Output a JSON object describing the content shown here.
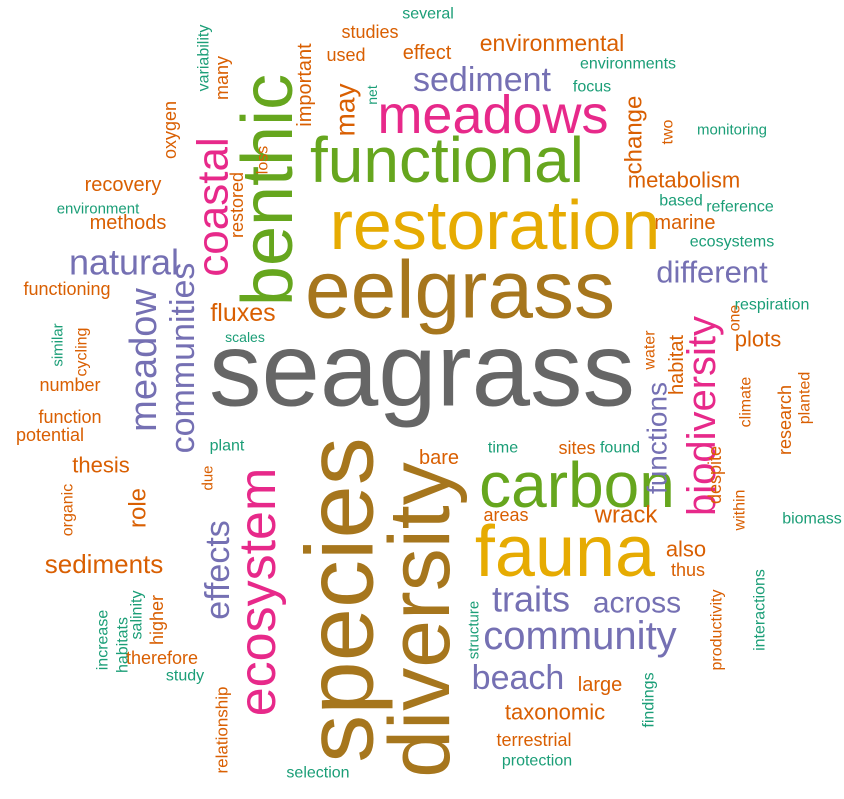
{
  "words": [
    {
      "text": "seagrass",
      "color": "#666666"
    },
    {
      "text": "eelgrass",
      "color": "#a6761d"
    },
    {
      "text": "restoration",
      "color": "#e6ab02"
    },
    {
      "text": "functional",
      "color": "#66a61e"
    },
    {
      "text": "meadows",
      "color": "#e7298a"
    },
    {
      "text": "sediment",
      "color": "#7570b3"
    },
    {
      "text": "environmental",
      "color": "#d95f02"
    },
    {
      "text": "effect",
      "color": "#d95f02"
    },
    {
      "text": "studies",
      "color": "#d95f02"
    },
    {
      "text": "several",
      "color": "#1b9e77"
    },
    {
      "text": "used",
      "color": "#d95f02"
    },
    {
      "text": "environments",
      "color": "#1b9e77"
    },
    {
      "text": "focus",
      "color": "#1b9e77"
    },
    {
      "text": "monitoring",
      "color": "#1b9e77"
    },
    {
      "text": "recovery",
      "color": "#d95f02"
    },
    {
      "text": "environment",
      "color": "#1b9e77"
    },
    {
      "text": "methods",
      "color": "#d95f02"
    },
    {
      "text": "metabolism",
      "color": "#d95f02"
    },
    {
      "text": "based",
      "color": "#1b9e77"
    },
    {
      "text": "reference",
      "color": "#1b9e77"
    },
    {
      "text": "marine",
      "color": "#d95f02"
    },
    {
      "text": "ecosystems",
      "color": "#1b9e77"
    },
    {
      "text": "natural",
      "color": "#7570b3"
    },
    {
      "text": "different",
      "color": "#7570b3"
    },
    {
      "text": "functioning",
      "color": "#d95f02"
    },
    {
      "text": "respiration",
      "color": "#1b9e77"
    },
    {
      "text": "fluxes",
      "color": "#d95f02"
    },
    {
      "text": "scales",
      "color": "#1b9e77"
    },
    {
      "text": "plots",
      "color": "#d95f02"
    },
    {
      "text": "number",
      "color": "#d95f02"
    },
    {
      "text": "function",
      "color": "#d95f02"
    },
    {
      "text": "potential",
      "color": "#d95f02"
    },
    {
      "text": "plant",
      "color": "#1b9e77"
    },
    {
      "text": "time",
      "color": "#1b9e77"
    },
    {
      "text": "sites",
      "color": "#d95f02"
    },
    {
      "text": "found",
      "color": "#1b9e77"
    },
    {
      "text": "thesis",
      "color": "#d95f02"
    },
    {
      "text": "bare",
      "color": "#d95f02"
    },
    {
      "text": "carbon",
      "color": "#66a61e"
    },
    {
      "text": "areas",
      "color": "#d95f02"
    },
    {
      "text": "wrack",
      "color": "#d95f02"
    },
    {
      "text": "biomass",
      "color": "#1b9e77"
    },
    {
      "text": "sediments",
      "color": "#d95f02"
    },
    {
      "text": "fauna",
      "color": "#e6ab02"
    },
    {
      "text": "also",
      "color": "#d95f02"
    },
    {
      "text": "thus",
      "color": "#d95f02"
    },
    {
      "text": "traits",
      "color": "#7570b3"
    },
    {
      "text": "across",
      "color": "#7570b3"
    },
    {
      "text": "community",
      "color": "#7570b3"
    },
    {
      "text": "therefore",
      "color": "#d95f02"
    },
    {
      "text": "study",
      "color": "#1b9e77"
    },
    {
      "text": "beach",
      "color": "#7570b3"
    },
    {
      "text": "large",
      "color": "#d95f02"
    },
    {
      "text": "taxonomic",
      "color": "#d95f02"
    },
    {
      "text": "terrestrial",
      "color": "#d95f02"
    },
    {
      "text": "protection",
      "color": "#1b9e77"
    },
    {
      "text": "selection",
      "color": "#1b9e77"
    },
    {
      "text": "benthic",
      "color": "#66a61e"
    },
    {
      "text": "coastal",
      "color": "#e7298a"
    },
    {
      "text": "communities",
      "color": "#7570b3"
    },
    {
      "text": "meadow",
      "color": "#7570b3"
    },
    {
      "text": "species",
      "color": "#a6761d"
    },
    {
      "text": "diversity",
      "color": "#a6761d"
    },
    {
      "text": "ecosystem",
      "color": "#e7298a"
    },
    {
      "text": "effects",
      "color": "#7570b3"
    },
    {
      "text": "biodiversity",
      "color": "#e7298a"
    },
    {
      "text": "functions",
      "color": "#7570b3"
    },
    {
      "text": "role",
      "color": "#d95f02"
    },
    {
      "text": "important",
      "color": "#d95f02"
    },
    {
      "text": "may",
      "color": "#d95f02"
    },
    {
      "text": "many",
      "color": "#d95f02"
    },
    {
      "text": "variability",
      "color": "#1b9e77"
    },
    {
      "text": "oxygen",
      "color": "#d95f02"
    },
    {
      "text": "restored",
      "color": "#d95f02"
    },
    {
      "text": "loss",
      "color": "#d95f02"
    },
    {
      "text": "change",
      "color": "#d95f02"
    },
    {
      "text": "two",
      "color": "#d95f02"
    },
    {
      "text": "net",
      "color": "#1b9e77"
    },
    {
      "text": "similar",
      "color": "#1b9e77"
    },
    {
      "text": "cycling",
      "color": "#d95f02"
    },
    {
      "text": "habitat",
      "color": "#d95f02"
    },
    {
      "text": "water",
      "color": "#d95f02"
    },
    {
      "text": "one",
      "color": "#d95f02"
    },
    {
      "text": "climate",
      "color": "#d95f02"
    },
    {
      "text": "research",
      "color": "#d95f02"
    },
    {
      "text": "planted",
      "color": "#d95f02"
    },
    {
      "text": "despite",
      "color": "#d95f02"
    },
    {
      "text": "due",
      "color": "#d95f02"
    },
    {
      "text": "organic",
      "color": "#d95f02"
    },
    {
      "text": "within",
      "color": "#d95f02"
    },
    {
      "text": "salinity",
      "color": "#1b9e77"
    },
    {
      "text": "higher",
      "color": "#d95f02"
    },
    {
      "text": "habitats",
      "color": "#1b9e77"
    },
    {
      "text": "increase",
      "color": "#1b9e77"
    },
    {
      "text": "structure",
      "color": "#1b9e77"
    },
    {
      "text": "productivity",
      "color": "#d95f02"
    },
    {
      "text": "interactions",
      "color": "#1b9e77"
    },
    {
      "text": "relationship",
      "color": "#d95f02"
    },
    {
      "text": "findings",
      "color": "#1b9e77"
    }
  ]
}
